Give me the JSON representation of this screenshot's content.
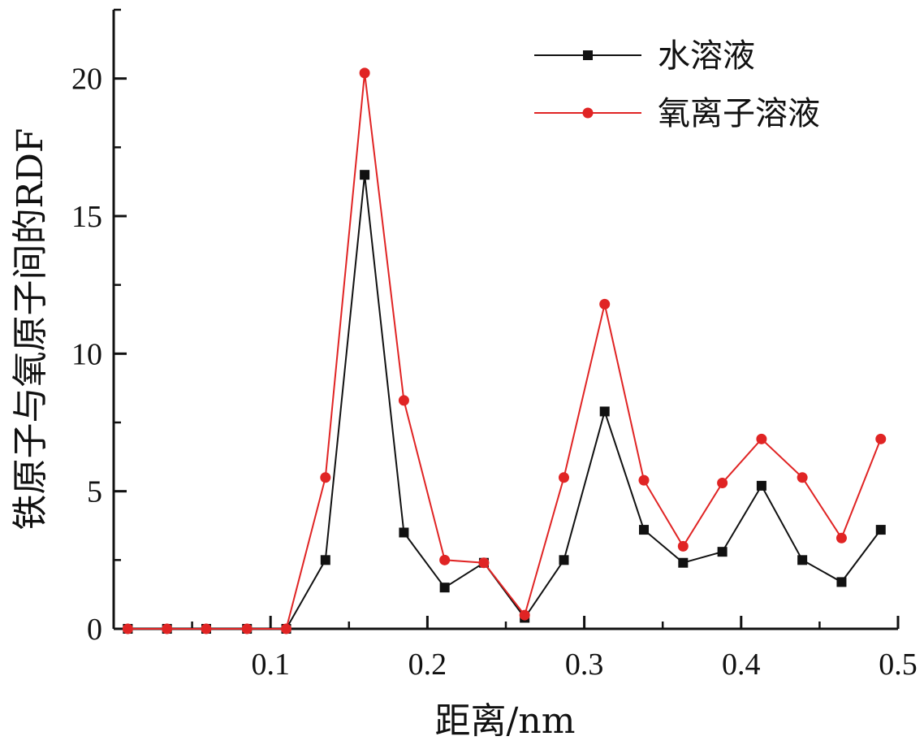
{
  "chart_data": {
    "type": "line",
    "title": "",
    "xlabel": "距离/nm",
    "ylabel": "铁原子与氧原子间的RDF",
    "xlim": [
      0.0,
      0.5
    ],
    "ylim": [
      0,
      22.5
    ],
    "xticks": [
      0.1,
      0.2,
      0.3,
      0.4,
      0.5
    ],
    "yticks": [
      0,
      5,
      10,
      15,
      20
    ],
    "xtick_labels": [
      "0.1",
      "0.2",
      "0.3",
      "0.4",
      "0.5"
    ],
    "ytick_labels": [
      "0",
      "5",
      "10",
      "15",
      "20"
    ],
    "grid": false,
    "legend_position": "top-right",
    "x": [
      0.009,
      0.034,
      0.059,
      0.085,
      0.11,
      0.135,
      0.16,
      0.185,
      0.211,
      0.236,
      0.262,
      0.287,
      0.313,
      0.338,
      0.363,
      0.388,
      0.413,
      0.439,
      0.464,
      0.489
    ],
    "series": [
      {
        "name": "水溶液",
        "color": "#111111",
        "marker": "square",
        "values": [
          0.0,
          0.0,
          0.0,
          0.0,
          0.0,
          2.5,
          16.5,
          3.5,
          1.5,
          2.4,
          0.4,
          2.5,
          7.9,
          3.6,
          2.4,
          2.8,
          5.2,
          2.5,
          1.7,
          3.6
        ]
      },
      {
        "name": "氧离子溶液",
        "color": "#e02424",
        "marker": "circle",
        "values": [
          0.0,
          0.0,
          0.0,
          0.0,
          0.0,
          5.5,
          20.2,
          8.3,
          2.5,
          2.4,
          0.5,
          5.5,
          11.8,
          5.4,
          3.0,
          5.3,
          6.9,
          5.5,
          3.3,
          6.9
        ]
      }
    ]
  }
}
